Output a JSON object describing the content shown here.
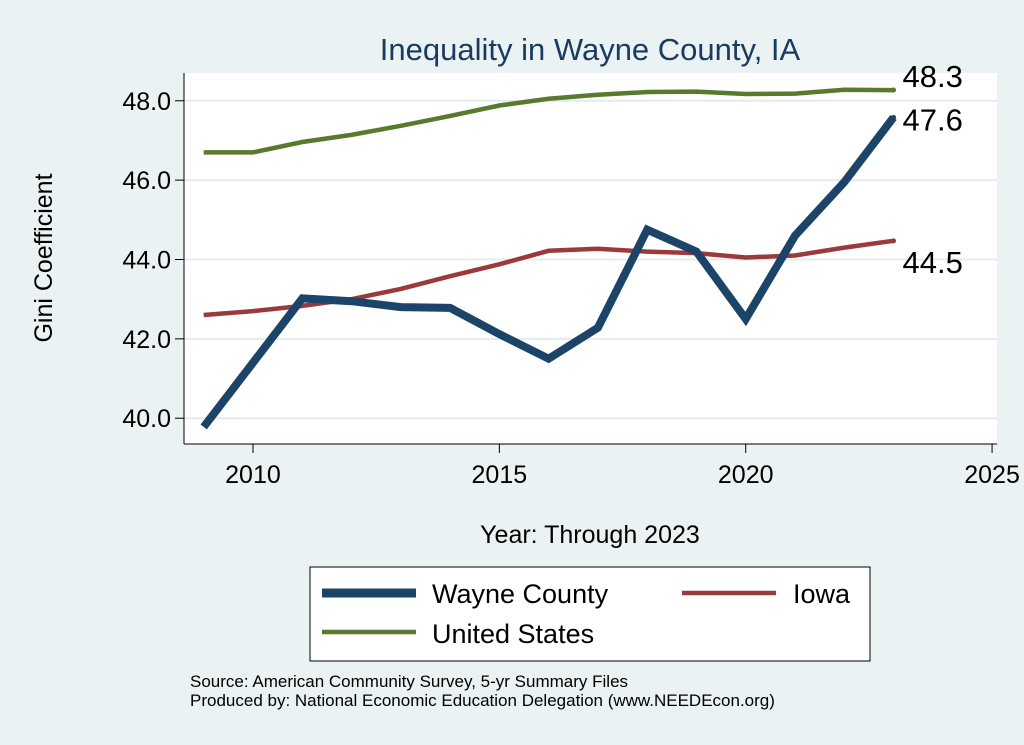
{
  "chart_data": {
    "type": "line",
    "title": "Inequality in Wayne County, IA",
    "xlabel": "Year: Through 2023",
    "ylabel": "Gini Coefficient",
    "xlim": [
      2008.6,
      2025.1
    ],
    "ylim": [
      39.35,
      48.7
    ],
    "x_ticks": [
      {
        "value": 2010,
        "label": "2010"
      },
      {
        "value": 2015,
        "label": "2015"
      },
      {
        "value": 2020,
        "label": "2020"
      },
      {
        "value": 2025,
        "label": "2025"
      }
    ],
    "y_ticks": [
      {
        "value": 40,
        "label": "40.0"
      },
      {
        "value": 42,
        "label": "42.0"
      },
      {
        "value": 44,
        "label": "44.0"
      },
      {
        "value": 46,
        "label": "46.0"
      },
      {
        "value": 48,
        "label": "48.0"
      }
    ],
    "grid": true,
    "x": [
      2009,
      2010,
      2011,
      2012,
      2013,
      2014,
      2015,
      2016,
      2017,
      2018,
      2019,
      2020,
      2021,
      2022,
      2023
    ],
    "series": [
      {
        "name": "Wayne County",
        "color": "#1b4468",
        "values": [
          39.78,
          41.4,
          43.02,
          42.95,
          42.8,
          42.78,
          42.12,
          41.5,
          42.28,
          44.75,
          44.2,
          42.5,
          44.6,
          45.95,
          47.58
        ],
        "end_label": "47.6"
      },
      {
        "name": "Iowa",
        "color": "#9a3a3c",
        "values": [
          42.6,
          42.7,
          42.83,
          43.0,
          43.26,
          43.58,
          43.88,
          44.22,
          44.27,
          44.2,
          44.16,
          44.05,
          44.1,
          44.3,
          44.47
        ],
        "end_label": "44.5"
      },
      {
        "name": "United States",
        "color": "#587a2d",
        "values": [
          46.7,
          46.7,
          46.96,
          47.14,
          47.37,
          47.62,
          47.88,
          48.05,
          48.15,
          48.22,
          48.23,
          48.17,
          48.18,
          48.28,
          48.27
        ],
        "end_label": "48.3"
      }
    ],
    "legend": {
      "position": "bottom",
      "entries": [
        "Wayne County",
        "Iowa",
        "United States"
      ]
    },
    "notes": [
      "Source: American Community Survey, 5-yr Summary Files",
      "Produced by: National Economic Education Delegation (www.NEEDEcon.org)"
    ]
  }
}
